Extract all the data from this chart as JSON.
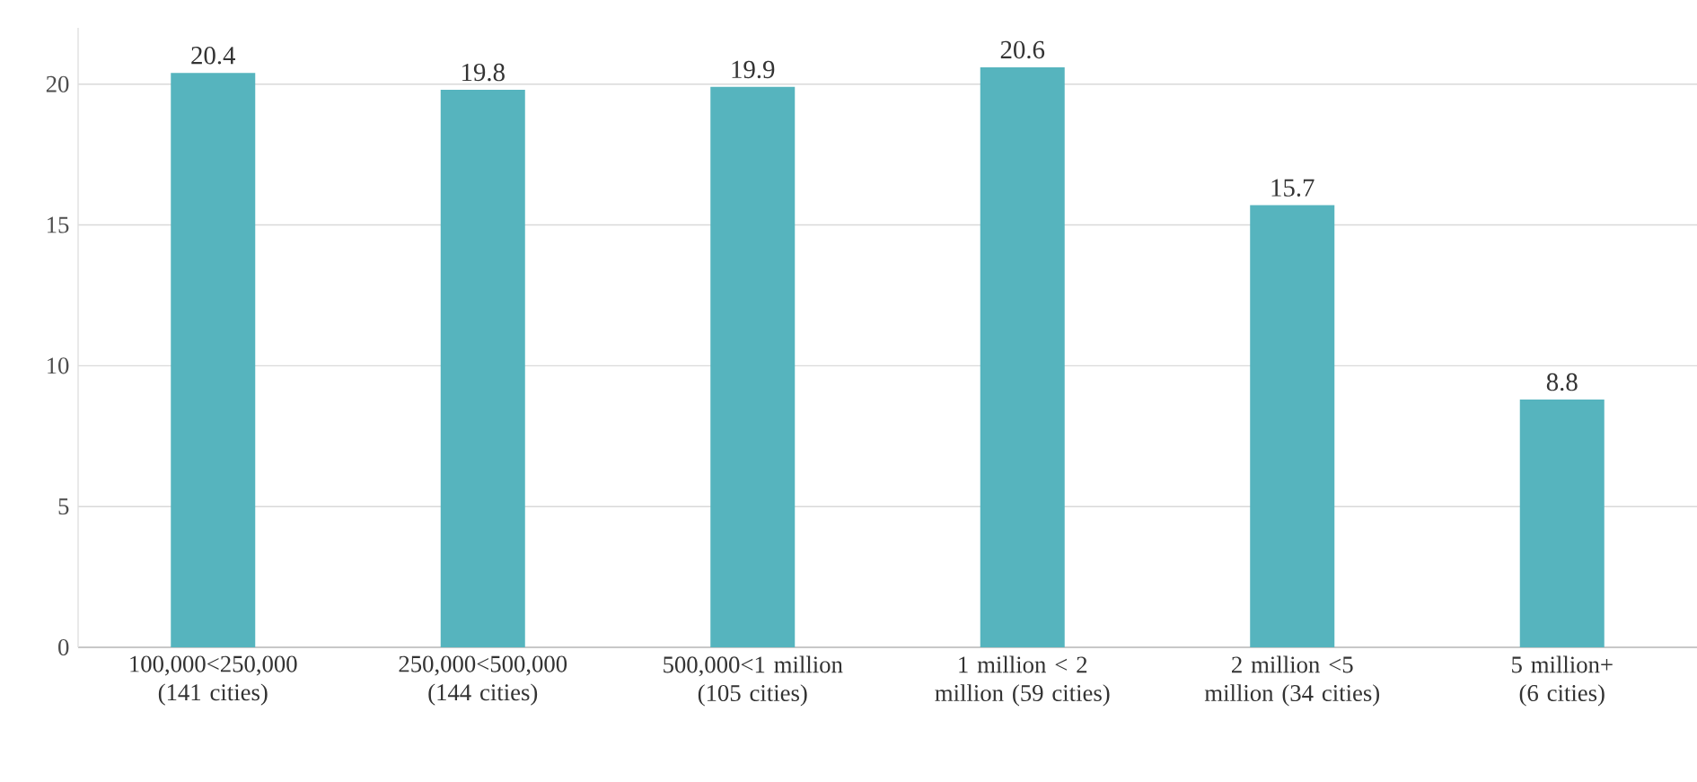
{
  "chart_data": {
    "type": "bar",
    "categories": [
      "100,000<250,000 (141 cities)",
      "250,000<500,000 (144 cities)",
      "500,000<1 million (105 cities)",
      "1 million < 2 million (59 cities)",
      "2 million <5 million (34 cities)",
      "5 million+ (6 cities)"
    ],
    "values": [
      20.4,
      19.8,
      19.9,
      20.6,
      15.7,
      8.8
    ],
    "color": "#56b4be",
    "ylim": [
      0,
      22
    ],
    "yticks": [
      0,
      5,
      10,
      15,
      20
    ],
    "grid": "y",
    "data_labels": true
  }
}
